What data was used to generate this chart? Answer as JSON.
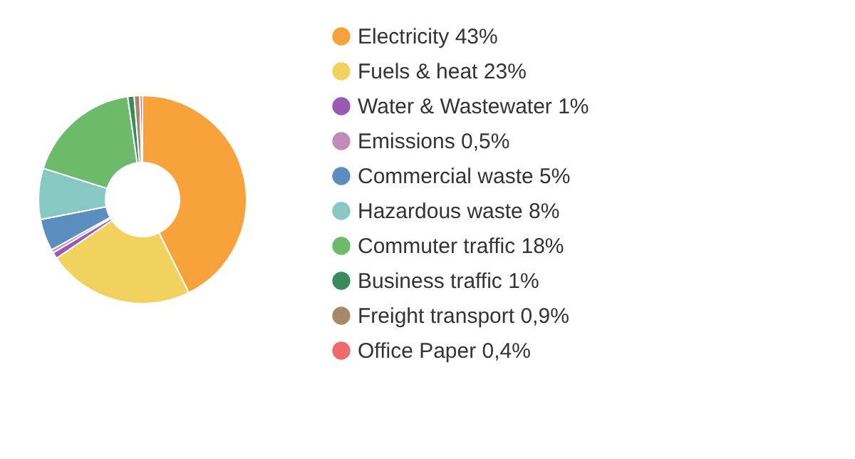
{
  "chart_data": {
    "type": "donut",
    "categories": [
      "Electricity",
      "Fuels & heat",
      "Water & Wastewater",
      "Emissions",
      "Commercial waste",
      "Hazardous waste",
      "Commuter traffic",
      "Business traffic",
      "Freight transport",
      "Office Paper"
    ],
    "values": [
      43,
      23,
      1,
      0.5,
      5,
      8,
      18,
      1,
      0.9,
      0.4
    ],
    "value_labels": [
      "43%",
      "23%",
      "1%",
      "0,5%",
      "5%",
      "8%",
      "18%",
      "1%",
      "0,9%",
      "0,4%"
    ],
    "colors": [
      "#f7a23b",
      "#f2d25f",
      "#9b59b6",
      "#c28cba",
      "#5b8ebf",
      "#88c8c3",
      "#6cba6a",
      "#3a8a5c",
      "#a8876b",
      "#ef6b6b"
    ],
    "legend": "right"
  }
}
